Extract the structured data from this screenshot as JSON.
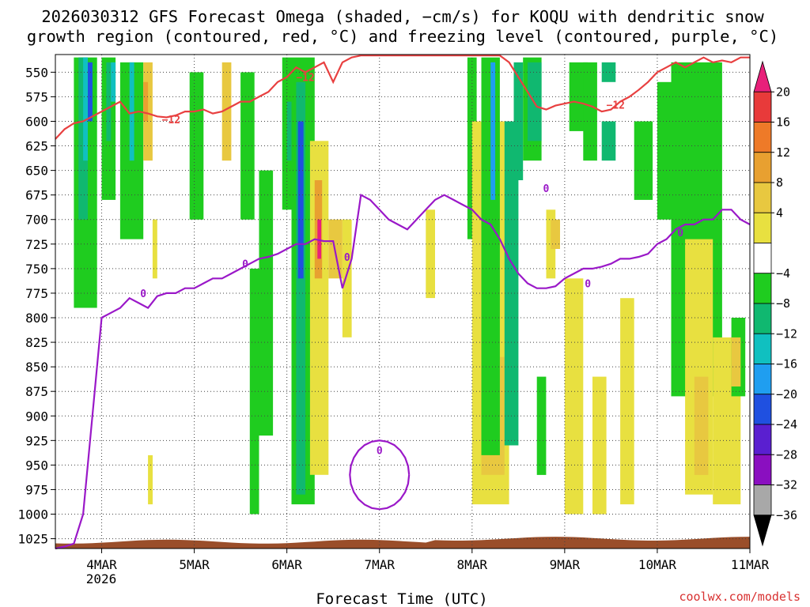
{
  "chart_data": {
    "type": "heatmap",
    "title_line1": "2026030312 GFS Forecast Omega (shaded, −cm/s) for KOQU with dendritic snow",
    "title_line2": "growth region (contoured, red, °C) and freezing level (contoured, purple, °C)",
    "xlabel": "Forecast Time (UTC)",
    "credit": "coolwx.com/models",
    "x_tick_labels": [
      "4MAR",
      "5MAR",
      "6MAR",
      "7MAR",
      "8MAR",
      "9MAR",
      "10MAR",
      "11MAR"
    ],
    "x_tick_year": "2026",
    "x_range_days": [
      3.5,
      11.0
    ],
    "y_tick_labels": [
      "550",
      "575",
      "600",
      "625",
      "650",
      "675",
      "700",
      "725",
      "750",
      "775",
      "800",
      "825",
      "850",
      "875",
      "900",
      "925",
      "950",
      "975",
      "1000",
      "1025"
    ],
    "y_values": [
      550,
      575,
      600,
      625,
      650,
      675,
      700,
      725,
      750,
      775,
      800,
      825,
      850,
      875,
      900,
      925,
      950,
      975,
      1000,
      1025
    ],
    "y_range": [
      532,
      1035
    ],
    "y_inverted": true,
    "grid": true,
    "colorbar": {
      "labels": [
        "20",
        "16",
        "12",
        "8",
        "4",
        "−4",
        "−8",
        "−12",
        "−16",
        "−20",
        "−24",
        "−28",
        "−32",
        "−36"
      ],
      "colors": [
        "#e8207a",
        "#e83a3a",
        "#ee7a28",
        "#e8a030",
        "#e8c840",
        "#e8e040",
        "#ffffff",
        "#1fcc1f",
        "#10b870",
        "#10c0c0",
        "#1f9ef0",
        "#1f50e0",
        "#5a1fd0",
        "#8a0fc0",
        "#a8a8a8",
        "#000000"
      ]
    },
    "contour_labels": {
      "dgz": "−12",
      "freezing": "0"
    },
    "series": [
      {
        "variable": "dgz_minus12C",
        "color": "#e84040",
        "x": [
          3.5,
          3.6,
          3.7,
          3.8,
          3.9,
          4.0,
          4.1,
          4.2,
          4.3,
          4.4,
          4.5,
          4.6,
          4.7,
          4.8,
          4.9,
          5.0,
          5.1,
          5.2,
          5.3,
          5.4,
          5.5,
          5.6,
          5.7,
          5.8,
          5.9,
          6.0,
          6.1,
          6.2,
          6.3,
          6.4,
          6.5,
          6.6,
          6.7,
          6.8,
          6.9,
          7.0,
          7.1,
          7.2,
          7.3,
          7.4,
          7.5,
          7.6,
          7.7,
          7.8,
          7.9,
          8.0,
          8.1,
          8.2,
          8.3,
          8.4,
          8.5,
          8.6,
          8.7,
          8.8,
          8.9,
          9.0,
          9.1,
          9.2,
          9.3,
          9.4,
          9.5,
          9.6,
          9.7,
          9.8,
          9.9,
          10.0,
          10.1,
          10.2,
          10.3,
          10.4,
          10.5,
          10.6,
          10.7,
          10.8,
          10.9,
          11.0
        ],
        "y": [
          618,
          608,
          602,
          600,
          595,
          590,
          585,
          580,
          592,
          590,
          592,
          595,
          596,
          594,
          590,
          590,
          588,
          592,
          590,
          585,
          580,
          580,
          575,
          570,
          560,
          555,
          545,
          550,
          545,
          540,
          560,
          540,
          535,
          533,
          533,
          533,
          533,
          533,
          533,
          533,
          533,
          533,
          533,
          533,
          533,
          533,
          533,
          533,
          533,
          540,
          555,
          570,
          585,
          588,
          584,
          582,
          580,
          582,
          585,
          590,
          588,
          580,
          575,
          568,
          560,
          550,
          545,
          540,
          545,
          540,
          535,
          540,
          538,
          540,
          535,
          535
        ]
      },
      {
        "variable": "freezing_level_0C",
        "color": "#9a18c8",
        "x": [
          3.5,
          3.6,
          3.7,
          3.8,
          3.9,
          4.0,
          4.1,
          4.2,
          4.3,
          4.4,
          4.5,
          4.6,
          4.7,
          4.8,
          4.9,
          5.0,
          5.1,
          5.2,
          5.3,
          5.4,
          5.5,
          5.6,
          5.7,
          5.8,
          5.9,
          6.0,
          6.1,
          6.2,
          6.3,
          6.4,
          6.5,
          6.6,
          6.7,
          6.8,
          6.9,
          7.0,
          7.1,
          7.2,
          7.3,
          7.4,
          7.5,
          7.6,
          7.7,
          7.8,
          7.9,
          8.0,
          8.1,
          8.2,
          8.3,
          8.4,
          8.5,
          8.6,
          8.7,
          8.8,
          8.9,
          9.0,
          9.1,
          9.2,
          9.3,
          9.4,
          9.5,
          9.6,
          9.7,
          9.8,
          9.9,
          10.0,
          10.1,
          10.2,
          10.3,
          10.4,
          10.5,
          10.6,
          10.7,
          10.8,
          10.9,
          11.0
        ],
        "y": [
          1035,
          1033,
          1030,
          1000,
          900,
          800,
          795,
          790,
          780,
          785,
          790,
          778,
          775,
          775,
          770,
          770,
          765,
          760,
          760,
          755,
          750,
          745,
          740,
          738,
          735,
          730,
          725,
          725,
          720,
          722,
          722,
          770,
          740,
          675,
          680,
          690,
          700,
          705,
          710,
          700,
          690,
          680,
          675,
          680,
          685,
          690,
          700,
          705,
          720,
          740,
          755,
          765,
          770,
          770,
          768,
          760,
          755,
          750,
          750,
          748,
          745,
          740,
          740,
          738,
          735,
          725,
          720,
          710,
          705,
          705,
          700,
          700,
          690,
          690,
          700,
          705
        ]
      }
    ]
  }
}
